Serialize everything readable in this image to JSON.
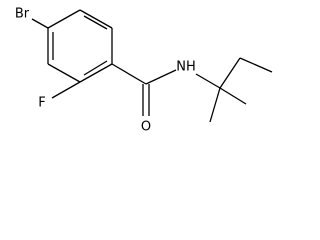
{
  "atoms": {
    "br": "Br",
    "f": "F",
    "o": "O",
    "nh": "NH"
  }
}
